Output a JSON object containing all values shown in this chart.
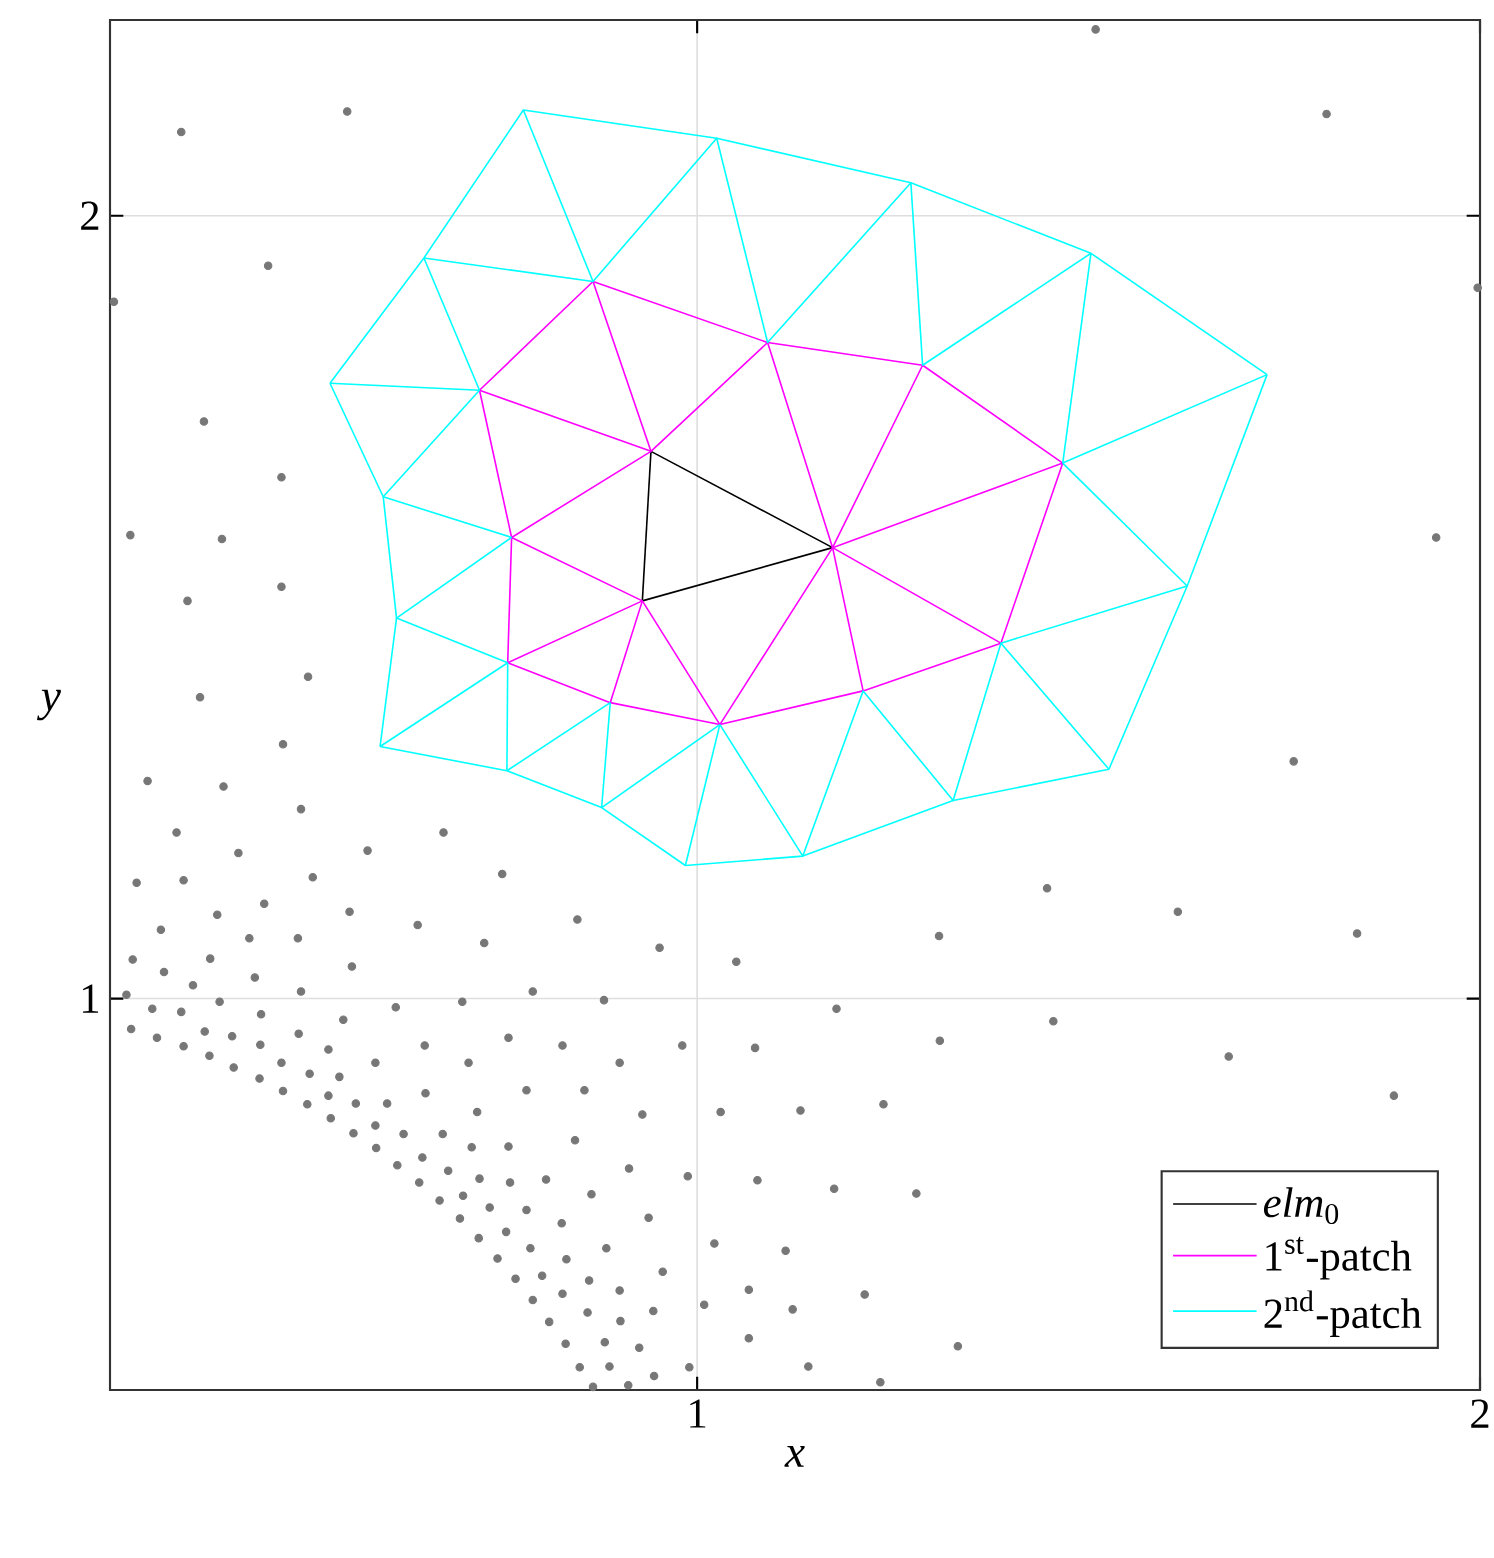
{
  "chart_data": {
    "type": "line",
    "xlabel": "x",
    "ylabel": "y",
    "xlim": [
      0.25,
      2
    ],
    "ylim": [
      0.5,
      2.25
    ],
    "xticks": [
      1,
      2
    ],
    "yticks": [
      1,
      2
    ],
    "grid": true,
    "legend": "bottom right",
    "series": [
      {
        "type": "scatter",
        "marker": "circle",
        "color": "#777777",
        "x": [
          0.471,
          0.298,
          0.395,
          0.494,
          0.335,
          0.414,
          0.579,
          0.676,
          0.284,
          0.344,
          0.509,
          0.751,
          0.447,
          0.387,
          0.556,
          0.315,
          0.428,
          0.49,
          0.643,
          0.847,
          0.728,
          0.952,
          0.279,
          0.378,
          0.319,
          0.435,
          0.559,
          0.356,
          0.271,
          0.494,
          0.39,
          0.304,
          0.341,
          0.443,
          0.615,
          0.7,
          0.79,
          0.881,
          0.548,
          0.277,
          0.371,
          0.31,
          0.406,
          0.491,
          0.652,
          0.759,
          0.828,
          0.981,
          0.344,
          0.442,
          0.529,
          0.377,
          0.469,
          0.589,
          0.708,
          0.901,
          0.408,
          0.505,
          0.543,
          0.441,
          0.471,
          0.529,
          0.653,
          0.782,
          0.856,
          0.502,
          0.564,
          0.604,
          0.719,
          0.93,
          0.532,
          0.589,
          0.561,
          0.625,
          0.675,
          0.844,
          0.712,
          0.759,
          0.59,
          0.649,
          0.617,
          0.682,
          0.913,
          0.988,
          0.722,
          0.761,
          0.807,
          0.645,
          0.865,
          0.671,
          0.701,
          0.735,
          0.782,
          0.938,
          0.697,
          0.827,
          0.756,
          0.721,
          0.787,
          0.884,
          0.745,
          0.833,
          0.956,
          0.768,
          0.802,
          0.862,
          0.79,
          0.828,
          0.901,
          1.009,
          0.811,
          0.86,
          0.902,
          0.944,
          0.832,
          0.882,
          0.926,
          0.85,
          0.888,
          0.945,
          0.99,
          0.867,
          0.912,
          1.762,
          1.447,
          1.614,
          1.843,
          1.309,
          1.05,
          1.178,
          1.455,
          1.31,
          1.074,
          1.679,
          1.89,
          1.03,
          1.132,
          1.238,
          1.077,
          1.175,
          1.28,
          1.022,
          1.113,
          1.214,
          1.066,
          1.122,
          1.066,
          1.333,
          1.142,
          1.234,
          0.341,
          0.553,
          1.509,
          1.804,
          0.452,
          0.255,
          1.997,
          0.37,
          0.469,
          0.276,
          0.393,
          0.469,
          0.349,
          0.503,
          0.365,
          1.944
        ],
        "values": [
          1.325,
          1.278,
          1.271,
          1.242,
          1.212,
          1.186,
          1.189,
          1.212,
          1.148,
          1.151,
          1.155,
          1.159,
          1.121,
          1.107,
          1.111,
          1.088,
          1.077,
          1.077,
          1.094,
          1.101,
          1.071,
          1.065,
          1.05,
          1.051,
          1.034,
          1.027,
          1.041,
          1.017,
          1.005,
          1.009,
          0.996,
          0.987,
          0.983,
          0.98,
          0.989,
          0.996,
          1.009,
          0.998,
          0.973,
          0.961,
          0.958,
          0.95,
          0.952,
          0.955,
          0.94,
          0.95,
          0.94,
          0.94,
          0.939,
          0.941,
          0.935,
          0.927,
          0.918,
          0.918,
          0.918,
          0.918,
          0.912,
          0.904,
          0.9,
          0.898,
          0.882,
          0.876,
          0.879,
          0.883,
          0.883,
          0.865,
          0.866,
          0.866,
          0.855,
          0.852,
          0.847,
          0.838,
          0.828,
          0.827,
          0.827,
          0.819,
          0.81,
          0.811,
          0.809,
          0.797,
          0.787,
          0.78,
          0.783,
          0.773,
          0.77,
          0.765,
          0.769,
          0.765,
          0.75,
          0.742,
          0.748,
          0.733,
          0.73,
          0.72,
          0.719,
          0.713,
          0.702,
          0.694,
          0.681,
          0.681,
          0.668,
          0.667,
          0.651,
          0.642,
          0.646,
          0.64,
          0.615,
          0.623,
          0.627,
          0.609,
          0.587,
          0.599,
          0.588,
          0.601,
          0.559,
          0.561,
          0.554,
          0.529,
          0.53,
          0.518,
          0.529,
          0.504,
          0.506,
          1.303,
          1.141,
          1.111,
          1.083,
          1.08,
          1.047,
          0.987,
          0.971,
          0.946,
          0.937,
          0.926,
          0.876,
          0.855,
          0.857,
          0.865,
          0.768,
          0.757,
          0.751,
          0.687,
          0.678,
          0.622,
          0.628,
          0.603,
          0.566,
          0.556,
          0.53,
          0.51,
          2.107,
          2.133,
          2.238,
          2.13,
          1.936,
          1.89,
          1.908,
          1.737,
          1.666,
          1.592,
          1.587,
          1.526,
          1.508,
          1.411,
          1.385,
          1.589
        ]
      },
      {
        "name": "*elm*$_{0}$",
        "color": "#000000",
        "x": [
          0.93,
          0.941
        ],
        "values": [
          1.508,
          1.699
        ]
      },
      {
        "color": "#000000",
        "x": [
          0.93,
          1.173
        ],
        "values": [
          1.508,
          1.576
        ]
      },
      {
        "color": "#000000",
        "x": [
          0.941,
          1.173
        ],
        "values": [
          1.699,
          1.576
        ]
      },
      {
        "name": "1$^{st}$-patch",
        "color": "#ff00ff",
        "x": [
          0.722,
          0.867,
          1.09,
          1.288,
          1.467
        ],
        "values": [
          1.777,
          1.916,
          1.838,
          1.809,
          1.684
        ]
      },
      {
        "color": "#ff00ff",
        "x": [
          0.758,
          0.889,
          1.029,
          1.212,
          1.388,
          1.467
        ],
        "values": [
          1.429,
          1.378,
          1.35,
          1.393,
          1.454,
          1.684
        ]
      },
      {
        "color": "#ff00ff",
        "x": [
          0.722,
          0.763,
          0.941,
          1.09,
          1.173,
          1.467
        ],
        "values": [
          1.777,
          1.589,
          1.699,
          1.838,
          1.576,
          1.684
        ]
      },
      {
        "color": "#ff00ff",
        "x": [
          0.758,
          0.763,
          0.93,
          1.029,
          1.173,
          1.288
        ],
        "values": [
          1.429,
          1.589,
          1.508,
          1.35,
          1.576,
          1.809
        ]
      },
      {
        "color": "#ff00ff",
        "x": [
          0.722,
          0.941
        ],
        "values": [
          1.777,
          1.699
        ]
      },
      {
        "color": "#ff00ff",
        "x": [
          0.867,
          0.941
        ],
        "values": [
          1.916,
          1.699
        ]
      },
      {
        "color": "#ff00ff",
        "x": [
          0.758,
          0.93
        ],
        "values": [
          1.429,
          1.508
        ]
      },
      {
        "color": "#ff00ff",
        "x": [
          0.889,
          0.93
        ],
        "values": [
          1.378,
          1.508
        ]
      },
      {
        "color": "#ff00ff",
        "x": [
          1.173,
          1.212
        ],
        "values": [
          1.576,
          1.393
        ]
      },
      {
        "color": "#ff00ff",
        "x": [
          1.173,
          1.388
        ],
        "values": [
          1.576,
          1.454
        ]
      },
      {
        "name": "2$^{nd}$-patch",
        "color": "#00ffff",
        "x": [
          0.531,
          0.651,
          0.778,
          1.025,
          1.273,
          1.503,
          1.728
        ],
        "values": [
          1.786,
          1.946,
          2.135,
          2.099,
          2.042,
          1.952,
          1.797
        ]
      },
      {
        "color": "#00ffff",
        "x": [
          0.595,
          0.757,
          0.878,
          0.985,
          1.135,
          1.327,
          1.526,
          1.626,
          1.728
        ],
        "values": [
          1.322,
          1.291,
          1.244,
          1.17,
          1.182,
          1.253,
          1.293,
          1.527,
          1.797
        ]
      },
      {
        "color": "#00ffff",
        "x": [
          0.595,
          0.616,
          0.763
        ],
        "values": [
          1.322,
          1.486,
          1.589
        ]
      },
      {
        "color": "#00ffff",
        "x": [
          0.531,
          0.599,
          0.763
        ],
        "values": [
          1.786,
          1.641,
          1.589
        ]
      },
      {
        "color": "#00ffff",
        "x": [
          0.599,
          0.616,
          0.758
        ],
        "values": [
          1.641,
          1.486,
          1.429
        ]
      },
      {
        "color": "#00ffff",
        "x": [
          0.778,
          0.867,
          1.025,
          1.09,
          1.273,
          1.288,
          1.503
        ],
        "values": [
          2.135,
          1.916,
          2.099,
          1.838,
          2.042,
          1.809,
          1.952
        ]
      },
      {
        "color": "#00ffff",
        "x": [
          0.651,
          0.867
        ],
        "values": [
          1.946,
          1.916
        ]
      },
      {
        "color": "#00ffff",
        "x": [
          1.467,
          1.503
        ],
        "values": [
          1.684,
          1.952
        ]
      },
      {
        "color": "#00ffff",
        "x": [
          1.467,
          1.728
        ],
        "values": [
          1.684,
          1.797
        ]
      },
      {
        "color": "#00ffff",
        "x": [
          1.467,
          1.626
        ],
        "values": [
          1.684,
          1.527
        ]
      },
      {
        "color": "#00ffff",
        "x": [
          1.388,
          1.626
        ],
        "values": [
          1.454,
          1.527
        ]
      },
      {
        "color": "#00ffff",
        "x": [
          1.029,
          1.135,
          1.212,
          1.327,
          1.388,
          1.526
        ],
        "values": [
          1.35,
          1.182,
          1.393,
          1.253,
          1.454,
          1.293
        ]
      },
      {
        "color": "#00ffff",
        "x": [
          0.985,
          1.029
        ],
        "values": [
          1.17,
          1.35
        ]
      },
      {
        "color": "#00ffff",
        "x": [
          0.878,
          1.029
        ],
        "values": [
          1.244,
          1.35
        ]
      },
      {
        "color": "#00ffff",
        "x": [
          0.878,
          0.889
        ],
        "values": [
          1.244,
          1.378
        ]
      },
      {
        "color": "#00ffff",
        "x": [
          0.757,
          0.889
        ],
        "values": [
          1.291,
          1.378
        ]
      },
      {
        "color": "#00ffff",
        "x": [
          0.757,
          0.758
        ],
        "values": [
          1.291,
          1.429
        ]
      },
      {
        "color": "#00ffff",
        "x": [
          0.595,
          0.758
        ],
        "values": [
          1.322,
          1.429
        ]
      },
      {
        "color": "#00ffff",
        "x": [
          0.599,
          0.722
        ],
        "values": [
          1.641,
          1.777
        ]
      },
      {
        "color": "#00ffff",
        "x": [
          0.531,
          0.722
        ],
        "values": [
          1.786,
          1.777
        ]
      },
      {
        "color": "#00ffff",
        "x": [
          0.651,
          0.722
        ],
        "values": [
          1.946,
          1.777
        ]
      }
    ]
  }
}
